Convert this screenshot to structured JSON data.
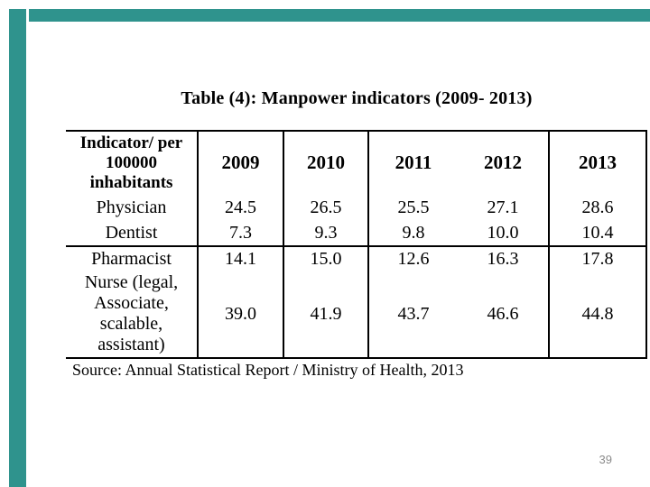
{
  "slide": {
    "title": "Table (4): Manpower indicators (2009- 2013)",
    "source_note": "Source: Annual Statistical Report / Ministry of Health, 2013",
    "page_number": "39",
    "accent_color": "#2F938D"
  },
  "table": {
    "header_col1": "Indicator/ per\n100000\ninhabitants",
    "years": [
      "2009",
      "2010",
      "2011",
      "2012",
      "2013"
    ],
    "rows": [
      {
        "label": "Physician",
        "values": [
          "24.5",
          "26.5",
          "25.5",
          "27.1",
          "28.6"
        ]
      },
      {
        "label": "Dentist",
        "values": [
          "7.3",
          "9.3",
          "9.8",
          "10.0",
          "10.4"
        ]
      },
      {
        "label": "Pharmacist",
        "values": [
          "14.1",
          "15.0",
          "12.6",
          "16.3",
          "17.8"
        ]
      },
      {
        "label": "Nurse (legal,\nAssociate,\nscalable,\nassistant)",
        "values": [
          "39.0",
          "41.9",
          "43.7",
          "46.6",
          "44.8"
        ]
      }
    ]
  },
  "chart_data": {
    "type": "table",
    "title": "Table (4): Manpower indicators (2009- 2013)",
    "columns": [
      "Indicator/ per 100000 inhabitants",
      "2009",
      "2010",
      "2011",
      "2012",
      "2013"
    ],
    "rows": [
      {
        "indicator": "Physician",
        "values": [
          24.5,
          26.5,
          25.5,
          27.1,
          28.6
        ]
      },
      {
        "indicator": "Dentist",
        "values": [
          7.3,
          9.3,
          9.8,
          10.0,
          10.4
        ]
      },
      {
        "indicator": "Pharmacist",
        "values": [
          14.1,
          15.0,
          12.6,
          16.3,
          17.8
        ]
      },
      {
        "indicator": "Nurse (legal, Associate, scalable, assistant)",
        "values": [
          39.0,
          41.9,
          43.7,
          46.6,
          44.8
        ]
      }
    ],
    "source": "Annual Statistical Report / Ministry of Health, 2013"
  }
}
